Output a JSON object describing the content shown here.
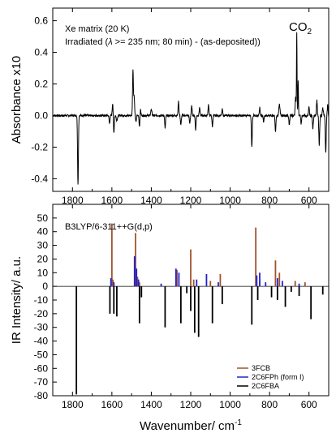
{
  "chart_data": [
    {
      "type": "line",
      "panel": "top",
      "ylabel": "Absorbance x10",
      "xlabel": "",
      "xlim": [
        1900,
        500
      ],
      "ylim": [
        -0.48,
        0.68
      ],
      "x_reversed": true,
      "xticks": [
        1800,
        1600,
        1400,
        1200,
        1000,
        800,
        600
      ],
      "xtick_labels": [
        "1800",
        "1600",
        "1400",
        "1200",
        "1000",
        "800",
        "600"
      ],
      "yticks": [
        -0.4,
        -0.2,
        0.0,
        0.2,
        0.4,
        0.6
      ],
      "ytick_labels": [
        "-0.4",
        "-0.2",
        "0.0",
        "0.2",
        "0.4",
        "0.6"
      ],
      "annotation_lines": [
        "Xe matrix (20 K)",
        "Irradiated (",
        "λ",
        " >= 235 nm; 80 min) - (as-deposited))"
      ],
      "peak_label": {
        "text": "CO",
        "sub": "2",
        "x": 660,
        "y": 0.53
      },
      "series": [
        {
          "color": "#000000",
          "peaks": [
            {
              "x": 1772,
              "y": -0.44,
              "w": 3
            },
            {
              "x": 1612,
              "y": -0.05,
              "w": 3
            },
            {
              "x": 1596,
              "y": 0.08,
              "w": 3
            },
            {
              "x": 1590,
              "y": -0.11,
              "w": 3
            },
            {
              "x": 1575,
              "y": -0.03,
              "w": 4
            },
            {
              "x": 1493,
              "y": 0.29,
              "w": 3
            },
            {
              "x": 1487,
              "y": 0.12,
              "w": 3
            },
            {
              "x": 1478,
              "y": -0.04,
              "w": 3
            },
            {
              "x": 1460,
              "y": -0.07,
              "w": 3
            },
            {
              "x": 1455,
              "y": 0.04,
              "w": 3
            },
            {
              "x": 1400,
              "y": 0.04,
              "w": 4
            },
            {
              "x": 1330,
              "y": -0.08,
              "w": 3
            },
            {
              "x": 1262,
              "y": 0.09,
              "w": 3
            },
            {
              "x": 1250,
              "y": -0.06,
              "w": 3
            },
            {
              "x": 1205,
              "y": -0.05,
              "w": 3
            },
            {
              "x": 1195,
              "y": 0.06,
              "w": 3
            },
            {
              "x": 1175,
              "y": -0.09,
              "w": 3
            },
            {
              "x": 1155,
              "y": 0.05,
              "w": 3
            },
            {
              "x": 1110,
              "y": 0.07,
              "w": 3
            },
            {
              "x": 1090,
              "y": -0.07,
              "w": 3
            },
            {
              "x": 1040,
              "y": 0.04,
              "w": 3
            },
            {
              "x": 890,
              "y": -0.2,
              "w": 3
            },
            {
              "x": 850,
              "y": 0.05,
              "w": 3
            },
            {
              "x": 830,
              "y": -0.04,
              "w": 3
            },
            {
              "x": 770,
              "y": -0.1,
              "w": 3
            },
            {
              "x": 750,
              "y": 0.07,
              "w": 4
            },
            {
              "x": 700,
              "y": -0.06,
              "w": 3
            },
            {
              "x": 668,
              "y": 0.12,
              "w": 3
            },
            {
              "x": 662,
              "y": 0.53,
              "w": 2
            },
            {
              "x": 655,
              "y": 0.22,
              "w": 2
            },
            {
              "x": 640,
              "y": -0.05,
              "w": 3
            },
            {
              "x": 600,
              "y": 0.05,
              "w": 3
            },
            {
              "x": 580,
              "y": -0.08,
              "w": 3
            },
            {
              "x": 560,
              "y": 0.1,
              "w": 3
            },
            {
              "x": 548,
              "y": -0.19,
              "w": 3
            },
            {
              "x": 530,
              "y": 0.05,
              "w": 3
            },
            {
              "x": 515,
              "y": -0.24,
              "w": 3
            },
            {
              "x": 505,
              "y": 0.06,
              "w": 3
            }
          ]
        }
      ]
    },
    {
      "type": "line",
      "panel": "bottom",
      "xlabel": "Wavenumber/ cm",
      "xlabel_sup": "-1",
      "ylabel": "IR Intensity/ a.u.",
      "xlim": [
        1900,
        500
      ],
      "ylim": [
        -80,
        60
      ],
      "x_reversed": true,
      "xticks": [
        1800,
        1600,
        1400,
        1200,
        1000,
        800,
        600
      ],
      "xtick_labels": [
        "1800",
        "1600",
        "1400",
        "1200",
        "1000",
        "800",
        "600"
      ],
      "yticks": [
        -80,
        -70,
        -60,
        -50,
        -40,
        -30,
        -20,
        -10,
        0,
        10,
        20,
        30,
        40,
        50
      ],
      "ytick_labels": [
        "-80",
        "-70",
        "-60",
        "-50",
        "-40",
        "-30",
        "-20",
        "-10",
        "0",
        "10",
        "20",
        "30",
        "40",
        "50"
      ],
      "annotation": "B3LYP/6-311++G(d,p)",
      "legend": "bottom-right",
      "series": [
        {
          "name": "3FCB",
          "color": "#a0522d",
          "sticks": [
            {
              "x": 1600,
              "y": 46
            },
            {
              "x": 1595,
              "y": 5
            },
            {
              "x": 1480,
              "y": 39
            },
            {
              "x": 1470,
              "y": 7
            },
            {
              "x": 1460,
              "y": 3
            },
            {
              "x": 1270,
              "y": 12
            },
            {
              "x": 1200,
              "y": 27
            },
            {
              "x": 1185,
              "y": 5
            },
            {
              "x": 1100,
              "y": 4
            },
            {
              "x": 1050,
              "y": 9
            },
            {
              "x": 870,
              "y": 43
            },
            {
              "x": 850,
              "y": 4
            },
            {
              "x": 770,
              "y": 19
            },
            {
              "x": 750,
              "y": 10
            },
            {
              "x": 670,
              "y": 4
            },
            {
              "x": 620,
              "y": 3
            }
          ]
        },
        {
          "name": "2C6FPh (form I)",
          "color": "#2222cc",
          "sticks": [
            {
              "x": 1605,
              "y": 6
            },
            {
              "x": 1590,
              "y": 3
            },
            {
              "x": 1485,
              "y": 22
            },
            {
              "x": 1475,
              "y": 13
            },
            {
              "x": 1465,
              "y": 5
            },
            {
              "x": 1350,
              "y": 2
            },
            {
              "x": 1275,
              "y": 13
            },
            {
              "x": 1260,
              "y": 10
            },
            {
              "x": 1170,
              "y": 5
            },
            {
              "x": 1120,
              "y": 9
            },
            {
              "x": 1060,
              "y": 3
            },
            {
              "x": 865,
              "y": 8
            },
            {
              "x": 850,
              "y": 10
            },
            {
              "x": 820,
              "y": 3
            },
            {
              "x": 760,
              "y": 6
            },
            {
              "x": 735,
              "y": 4
            },
            {
              "x": 650,
              "y": 2
            }
          ]
        },
        {
          "name": "2C6FBA",
          "color": "#000000",
          "sticks": [
            {
              "x": 1780,
              "y": -79
            },
            {
              "x": 1610,
              "y": -20
            },
            {
              "x": 1590,
              "y": -20
            },
            {
              "x": 1575,
              "y": -22
            },
            {
              "x": 1460,
              "y": -27
            },
            {
              "x": 1450,
              "y": -8
            },
            {
              "x": 1330,
              "y": -30
            },
            {
              "x": 1250,
              "y": -27
            },
            {
              "x": 1220,
              "y": -5
            },
            {
              "x": 1200,
              "y": -18
            },
            {
              "x": 1180,
              "y": -34
            },
            {
              "x": 1160,
              "y": -37
            },
            {
              "x": 1090,
              "y": -27
            },
            {
              "x": 1040,
              "y": -13
            },
            {
              "x": 890,
              "y": -28
            },
            {
              "x": 860,
              "y": -10
            },
            {
              "x": 790,
              "y": -8
            },
            {
              "x": 760,
              "y": -10
            },
            {
              "x": 720,
              "y": -15
            },
            {
              "x": 690,
              "y": -4
            },
            {
              "x": 650,
              "y": -7
            },
            {
              "x": 590,
              "y": -24
            },
            {
              "x": 530,
              "y": -6
            }
          ]
        }
      ]
    }
  ]
}
